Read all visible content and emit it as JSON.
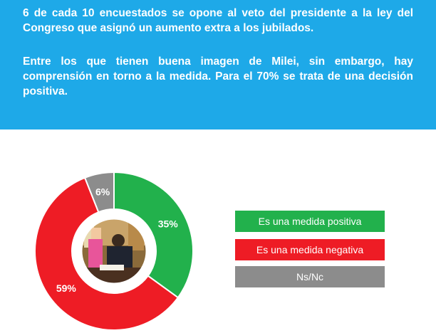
{
  "intro": {
    "paragraph_1": "6 de cada 10 encuestados se opone al veto del presidente a la ley del Congreso que asignó un aumento extra a los jubilados.",
    "paragraph_2": "Entre los que tienen buena imagen de Milei, sin embargo, hay comprensión en torno a la medida. Para el 70% se trata de una decisión positiva."
  },
  "colors": {
    "banner": "#1ea9e8",
    "positive": "#22b14c",
    "negative": "#ee1c25",
    "nsnc": "#8c8c8c"
  },
  "chart_data": {
    "type": "pie",
    "style": "donut",
    "title": "",
    "slices": [
      {
        "label": "Es una medida positiva",
        "value": 35,
        "display": "35%",
        "color": "#22b14c"
      },
      {
        "label": "Es una medida negativa",
        "value": 59,
        "display": "59%",
        "color": "#ee1c25"
      },
      {
        "label": "Ns/Nc",
        "value": 6,
        "display": "6%",
        "color": "#8c8c8c"
      }
    ],
    "center_image": "photo of president signing document",
    "legend_position": "right"
  }
}
